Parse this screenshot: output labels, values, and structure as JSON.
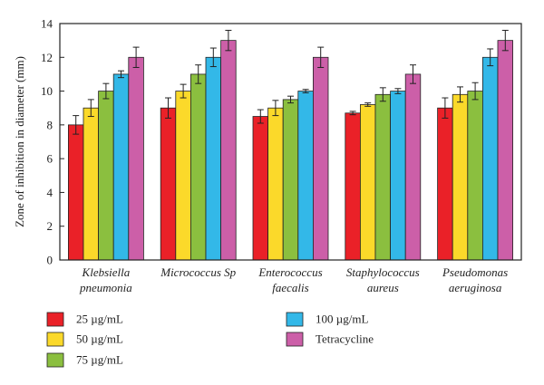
{
  "chart_data": {
    "type": "bar",
    "title": "",
    "xlabel": "",
    "ylabel": "Zone of inhibition in diameter (mm)",
    "ylim": [
      0,
      14
    ],
    "yticks": [
      0,
      2,
      4,
      6,
      8,
      10,
      12,
      14
    ],
    "grid": false,
    "legend_position": "bottom",
    "categories": [
      [
        "Klebsiella",
        "pneumonia"
      ],
      [
        "Micrococcus Sp"
      ],
      [
        "Enterococcus",
        "faecalis"
      ],
      [
        "Staphylococcus",
        "aureus"
      ],
      [
        "Pseudomonas",
        "aeruginosa"
      ]
    ],
    "series": [
      {
        "name": "25 µg/mL",
        "color": "#ea2128",
        "values": [
          8.0,
          9.0,
          8.5,
          8.7,
          9.0
        ],
        "errors": [
          0.55,
          0.6,
          0.4,
          0.1,
          0.6
        ]
      },
      {
        "name": "50 µg/mL",
        "color": "#fbd92a",
        "values": [
          9.0,
          10.0,
          9.0,
          9.2,
          9.8
        ],
        "errors": [
          0.5,
          0.4,
          0.45,
          0.1,
          0.45
        ]
      },
      {
        "name": "75 µg/mL",
        "color": "#8bbf3f",
        "values": [
          10.0,
          11.0,
          9.5,
          9.8,
          10.0
        ],
        "errors": [
          0.45,
          0.55,
          0.2,
          0.4,
          0.5
        ]
      },
      {
        "name": "100 µg/mL",
        "color": "#33b8e8",
        "values": [
          11.0,
          12.0,
          10.0,
          10.0,
          12.0
        ],
        "errors": [
          0.2,
          0.55,
          0.1,
          0.15,
          0.5
        ]
      },
      {
        "name": "Tetracycline",
        "color": "#cc5fa8",
        "values": [
          12.0,
          13.0,
          12.0,
          11.0,
          13.0
        ],
        "errors": [
          0.6,
          0.6,
          0.6,
          0.55,
          0.6
        ]
      }
    ]
  }
}
